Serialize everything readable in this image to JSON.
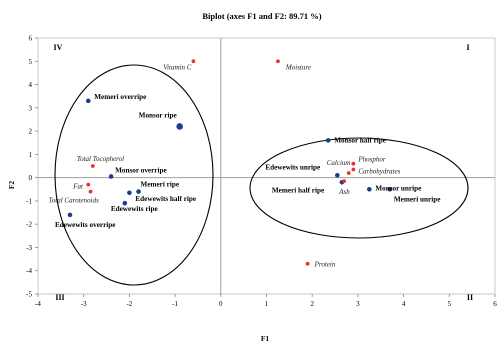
{
  "chart_data": {
    "type": "scatter",
    "title": "Biplot (axes F1 and F2: 89.71 %)",
    "xlabel": "F1",
    "ylabel": "F2",
    "xlim": [
      -4,
      6
    ],
    "ylim": [
      -5,
      6
    ],
    "xticks": [
      -4,
      -3,
      -2,
      -1,
      0,
      1,
      2,
      3,
      4,
      5,
      6
    ],
    "yticks": [
      -5,
      -4,
      -3,
      -2,
      -1,
      0,
      1,
      2,
      3,
      4,
      5,
      6
    ],
    "quadrant_labels": [
      "IV",
      "I",
      "III",
      "II"
    ],
    "colors": {
      "observations": "#1f3a93",
      "variables": "#e8312f",
      "axis": "#9e9e9e"
    },
    "series": [
      {
        "points": [
          {
            "label": "Monsor ripe",
            "x": -0.9,
            "y": 2.2
          },
          {
            "label": "Memeri overripe",
            "x": -2.9,
            "y": 3.3
          },
          {
            "label": "Monsor overripe",
            "x": -2.4,
            "y": 0.05
          },
          {
            "label": "Memeri ripe",
            "x": -1.8,
            "y": -0.6
          },
          {
            "label": "Edewewits half ripe",
            "x": -2.0,
            "y": -0.65
          },
          {
            "label": "Edewewits ripe",
            "x": -2.1,
            "y": -1.1
          },
          {
            "label": "Edewewits overripe",
            "x": -3.3,
            "y": -1.6
          },
          {
            "label": "Monsor half ripe",
            "x": 2.35,
            "y": 1.6
          },
          {
            "label": "Edewewits unripe",
            "x": 2.55,
            "y": 0.1
          },
          {
            "label": "Memeri half ripe",
            "x": 2.65,
            "y": -0.2
          },
          {
            "label": "Monsor unripe",
            "x": 3.25,
            "y": -0.5
          },
          {
            "label": "Memeri unripe",
            "x": 3.7,
            "y": -0.5
          }
        ]
      },
      {
        "points": [
          {
            "label": "Vitamin C",
            "x": -0.6,
            "y": 5.0
          },
          {
            "label": "Moisture",
            "x": 1.25,
            "y": 5.0
          },
          {
            "label": "Total Tocopherol",
            "x": -2.8,
            "y": 0.5
          },
          {
            "label": "Fat",
            "x": -2.9,
            "y": -0.3
          },
          {
            "label": "Total Carotenoids",
            "x": -2.85,
            "y": -0.6
          },
          {
            "label": "Calcium",
            "x": 2.8,
            "y": 0.2
          },
          {
            "label": "Phosphor",
            "x": 2.9,
            "y": 0.6
          },
          {
            "label": "Carbohydrates",
            "x": 2.9,
            "y": 0.35
          },
          {
            "label": "Ash",
            "x": 2.7,
            "y": -0.15
          },
          {
            "label": "Protein",
            "x": 1.9,
            "y": -3.7
          }
        ]
      }
    ]
  }
}
